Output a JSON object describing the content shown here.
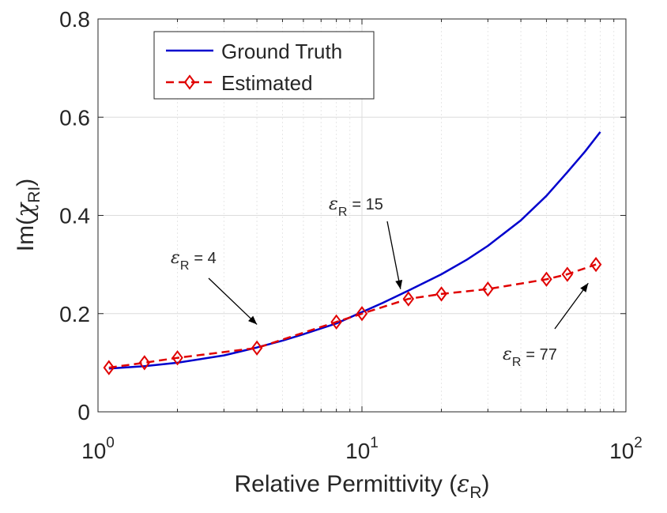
{
  "chart_data": {
    "type": "line",
    "xscale": "log",
    "xlim": [
      1,
      100
    ],
    "ylim": [
      0,
      0.8
    ],
    "xticks": [
      {
        "value": 1,
        "base": "10",
        "exp": "0"
      },
      {
        "value": 10,
        "base": "10",
        "exp": "1"
      },
      {
        "value": 100,
        "base": "10",
        "exp": "2"
      }
    ],
    "yticks": [
      {
        "value": 0,
        "label": "0"
      },
      {
        "value": 0.2,
        "label": "0.2"
      },
      {
        "value": 0.4,
        "label": "0.4"
      },
      {
        "value": 0.6,
        "label": "0.6"
      },
      {
        "value": 0.8,
        "label": "0.8"
      }
    ],
    "xlabel": {
      "main": "Relative Permittivity (",
      "sym": "ε",
      "sub": "R",
      "close": ")"
    },
    "ylabel": {
      "main": "Im(",
      "sym": "χ",
      "sub": "RI",
      "close": ")"
    },
    "grid": true,
    "legend_position": "top-left",
    "series": [
      {
        "name": "Ground Truth",
        "color": "#0000CD",
        "style": "solid",
        "marker": "none",
        "x": [
          1.1,
          1.5,
          2,
          3,
          4,
          5,
          6,
          8,
          10,
          12,
          15,
          20,
          25,
          30,
          40,
          50,
          60,
          70,
          80
        ],
        "y": [
          0.088,
          0.093,
          0.1,
          0.115,
          0.131,
          0.145,
          0.158,
          0.18,
          0.203,
          0.222,
          0.247,
          0.28,
          0.31,
          0.338,
          0.39,
          0.44,
          0.488,
          0.53,
          0.57
        ]
      },
      {
        "name": "Estimated",
        "color": "#E00000",
        "style": "dashed",
        "marker": "diamond",
        "x": [
          1.1,
          1.5,
          2,
          4,
          8,
          10,
          15,
          20,
          30,
          50,
          60,
          77
        ],
        "y": [
          0.09,
          0.1,
          0.11,
          0.13,
          0.183,
          0.2,
          0.23,
          0.24,
          0.25,
          0.27,
          0.28,
          0.3
        ]
      }
    ],
    "annotations": [
      {
        "sym": "ε",
        "sub": "R",
        "value": "= 4",
        "arrow_to_x": 4,
        "arrow_to_y": 0.178
      },
      {
        "sym": "ε",
        "sub": "R",
        "value": "= 15",
        "arrow_to_x": 14,
        "arrow_to_y": 0.25
      },
      {
        "sym": "ε",
        "sub": "R",
        "value": "= 77",
        "arrow_to_x": 72,
        "arrow_to_y": 0.262
      }
    ]
  }
}
